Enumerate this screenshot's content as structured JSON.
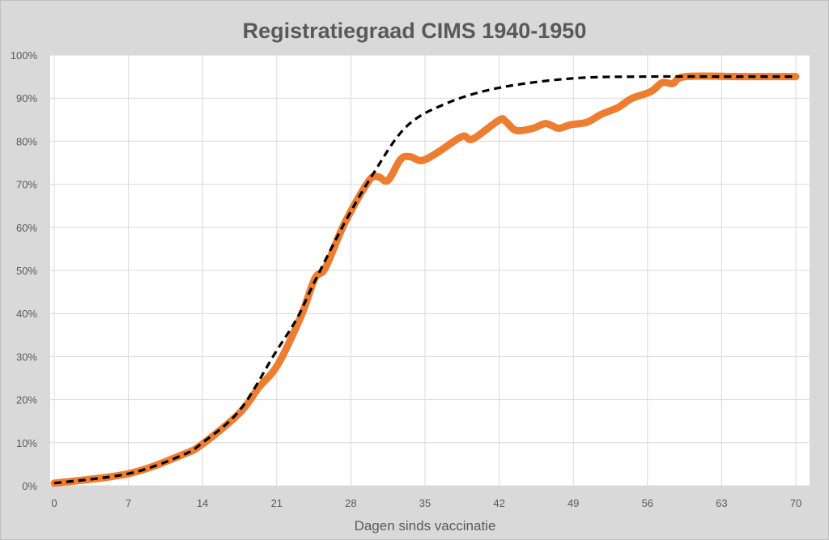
{
  "chart_data": {
    "type": "line",
    "title": "Registratiegraad CIMS 1940-1950",
    "xlabel": "Dagen sinds vaccinatie",
    "ylabel": "",
    "xlim": [
      0,
      70
    ],
    "ylim": [
      0,
      100
    ],
    "x_ticks": [
      "0",
      "7",
      "14",
      "21",
      "28",
      "35",
      "42",
      "49",
      "56",
      "63",
      "70"
    ],
    "y_ticks": [
      "0%",
      "10%",
      "20%",
      "30%",
      "40%",
      "50%",
      "60%",
      "70%",
      "80%",
      "90%",
      "100%"
    ],
    "grid": true,
    "legend": "none",
    "series": [
      {
        "style": "solid-thick",
        "color": "#ED7D31",
        "x": [
          0,
          7,
          12.1,
          14,
          17.5,
          19.3,
          21.1,
          23.3,
          24.6,
          25.6,
          27.4,
          29.7,
          30.6,
          31.5,
          32.7,
          33.6,
          34.7,
          36.2,
          38.5,
          39.5,
          42,
          42.6,
          43.6,
          45.2,
          46.4,
          47.6,
          48.7,
          50.3,
          51.6,
          53.2,
          54.5,
          56.3,
          57.4,
          58.4,
          59.6,
          65,
          70
        ],
        "y": [
          0.6,
          2.8,
          7.2,
          9.7,
          16.9,
          22.8,
          28.1,
          39.4,
          48.1,
          50.6,
          60.9,
          70.8,
          71.7,
          70.9,
          75.8,
          76.4,
          75.5,
          77.4,
          81.1,
          80.5,
          84.9,
          84.6,
          82.5,
          83,
          84.1,
          83,
          83.8,
          84.4,
          86.2,
          87.8,
          89.9,
          91.5,
          93.6,
          93.4,
          95,
          95,
          95
        ]
      },
      {
        "style": "dashed",
        "color": "#000000",
        "x": [
          0,
          7,
          12,
          14,
          17.5,
          20.8,
          22.9,
          24.6,
          27.4,
          30,
          33.2,
          37,
          42,
          49,
          56,
          63,
          70
        ],
        "y": [
          0.6,
          2.8,
          7,
          10,
          17.5,
          30.6,
          38.8,
          47.5,
          61,
          72,
          83.3,
          88.75,
          92.4,
          94.6,
          95,
          95,
          95
        ]
      }
    ]
  }
}
